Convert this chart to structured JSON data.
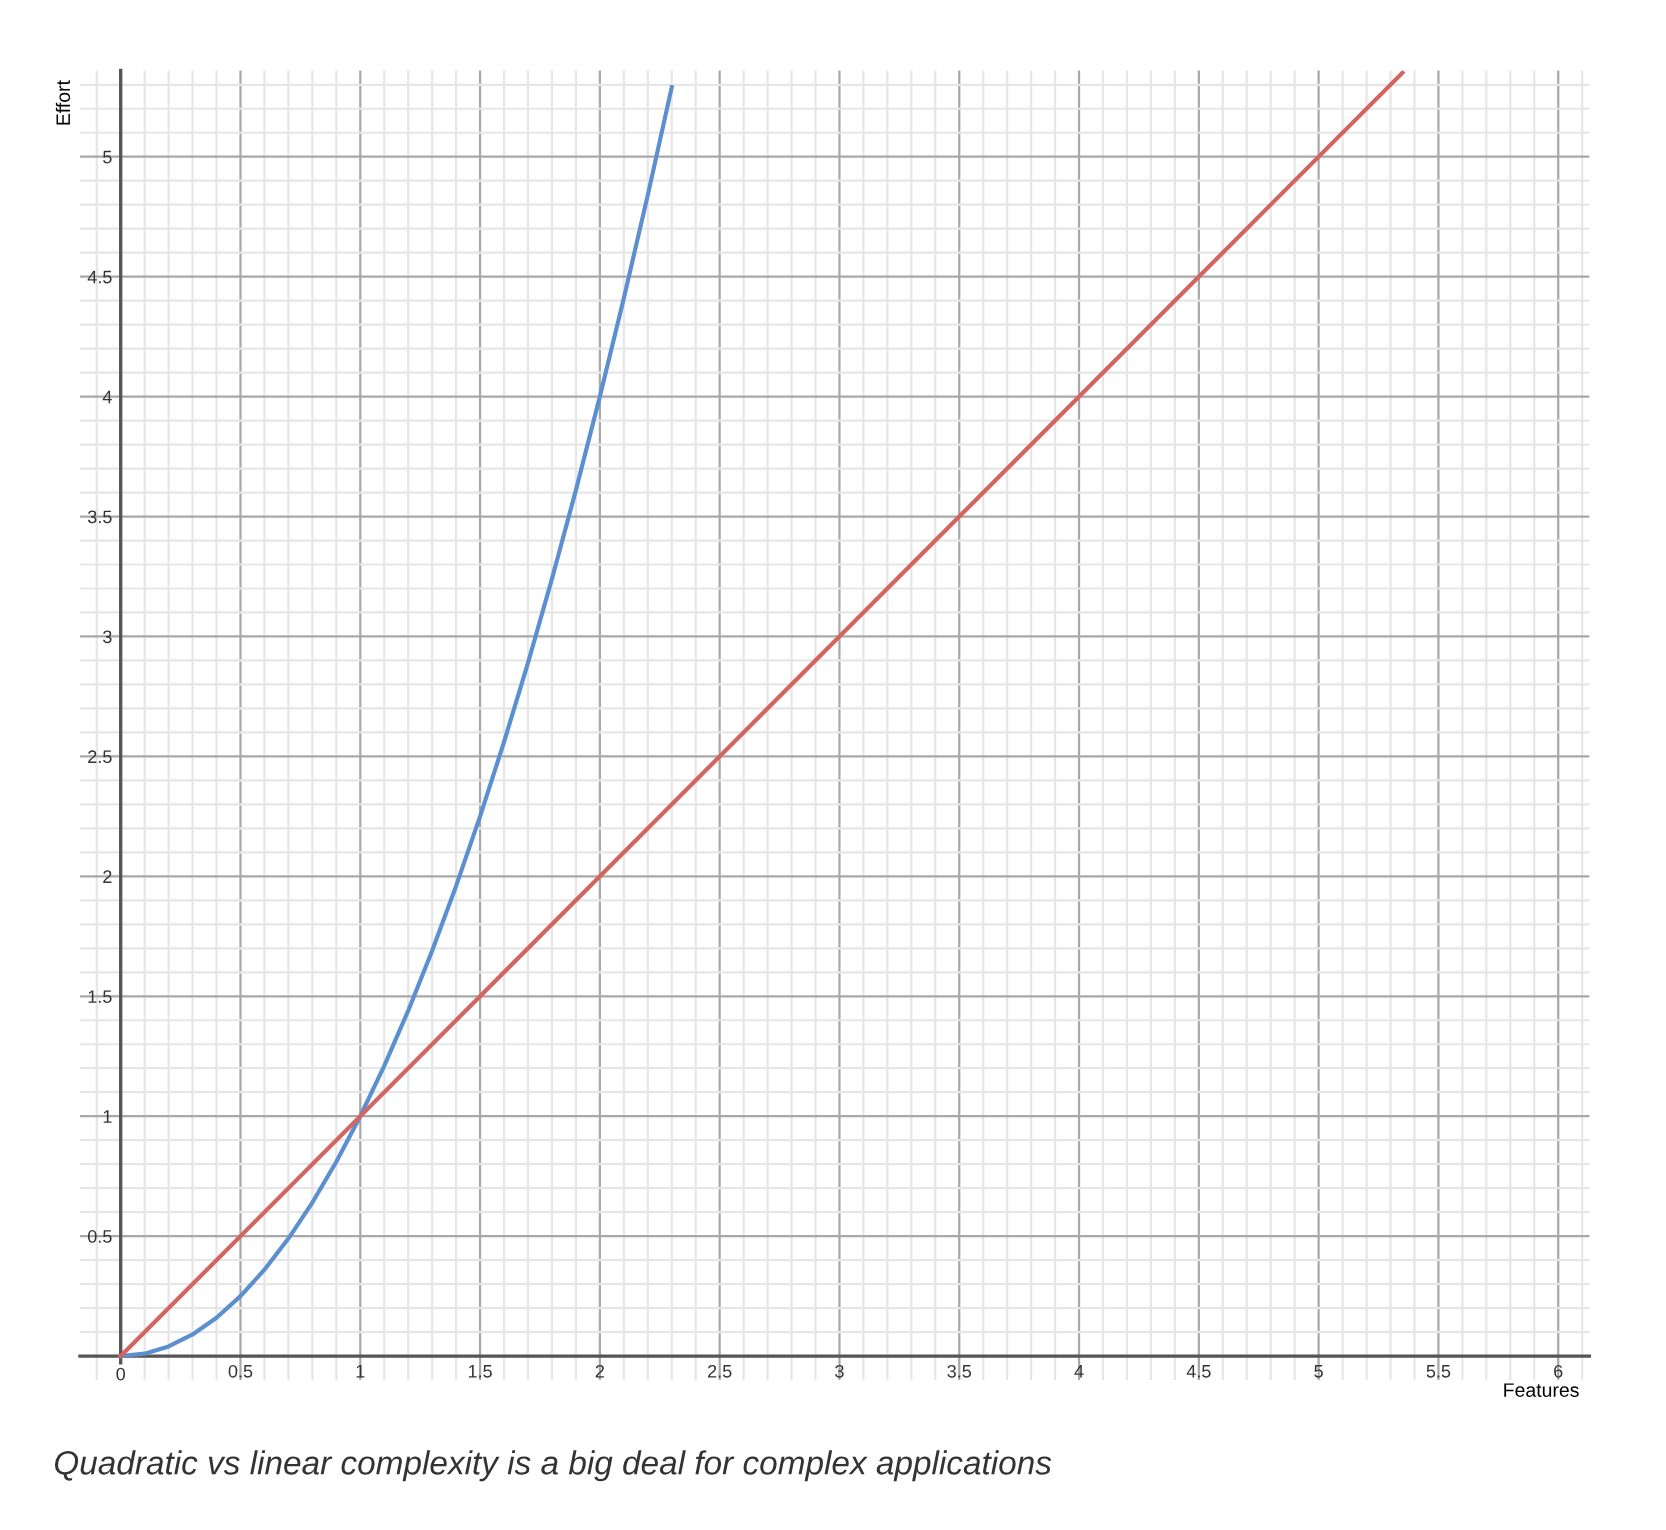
{
  "chart_data": {
    "type": "line",
    "xlabel": "Features",
    "ylabel": "Effort",
    "annotations": [
      "Quadratic vs linear complexity is a big deal for complex applications"
    ],
    "series": [
      {
        "color": "#5b8fcf",
        "x": [
          0,
          0.1,
          0.2,
          0.3,
          0.4,
          0.5,
          0.6,
          0.7,
          0.8,
          0.9,
          1,
          1.1,
          1.2,
          1.3,
          1.4,
          1.5,
          1.6,
          1.7,
          1.8,
          1.9,
          2,
          2.1,
          2.2,
          2.3
        ],
        "values": [
          0,
          0.01,
          0.04,
          0.09,
          0.16,
          0.25,
          0.36,
          0.49,
          0.64,
          0.81,
          1,
          1.21,
          1.44,
          1.69,
          1.96,
          2.25,
          2.56,
          2.89,
          3.24,
          3.61,
          4,
          4.41,
          4.84,
          5.29
        ]
      },
      {
        "color": "#d4645f",
        "x": [
          0,
          5.35
        ],
        "values": [
          0,
          5.35
        ]
      }
    ],
    "xlim": [
      -0.17,
      6.13
    ],
    "ylim": [
      -0.1,
      5.36
    ],
    "xticks": [
      0,
      0.5,
      1,
      1.5,
      2,
      2.5,
      3,
      3.5,
      4,
      4.5,
      5,
      5.5,
      6
    ],
    "yticks": [
      0.5,
      1,
      1.5,
      2,
      2.5,
      3,
      3.5,
      4,
      4.5,
      5
    ],
    "grid": true,
    "line_style": "solid",
    "marker": "none"
  }
}
